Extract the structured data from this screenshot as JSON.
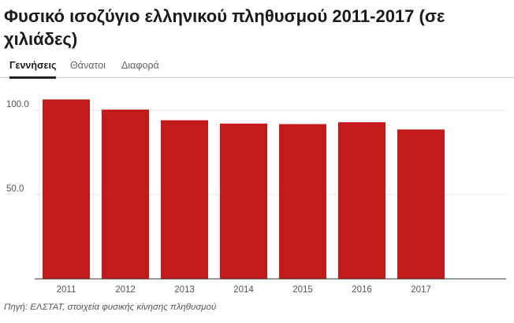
{
  "title": "Φυσικό ισοζύγιο ελληνικού πληθυσμού 2011-2017 (σε χιλιάδες)",
  "tabs": [
    {
      "label": "Γεννήσεις",
      "active": true
    },
    {
      "label": "Θάνατοι",
      "active": false
    },
    {
      "label": "Διαφορά",
      "active": false
    }
  ],
  "source": "Πηγή: ΕΛΣΤΑΤ, στοιχεία φυσικής κίνησης πληθυσμού",
  "colors": {
    "bar": "#c51a1c",
    "grid": "#e4e4e4",
    "axis": "#333333"
  },
  "chart_data": {
    "type": "bar",
    "title": "",
    "xlabel": "",
    "ylabel": "",
    "categories": [
      "2011",
      "2012",
      "2013",
      "2014",
      "2015",
      "2016",
      "2017"
    ],
    "values": [
      106.4,
      100.4,
      94.1,
      92.1,
      91.8,
      92.9,
      88.6
    ],
    "ylim": [
      0,
      114
    ],
    "yticks": [
      50.0,
      100.0
    ],
    "ytick_labels": [
      "50.0",
      "100.0"
    ],
    "grid": true,
    "legend": "none"
  }
}
